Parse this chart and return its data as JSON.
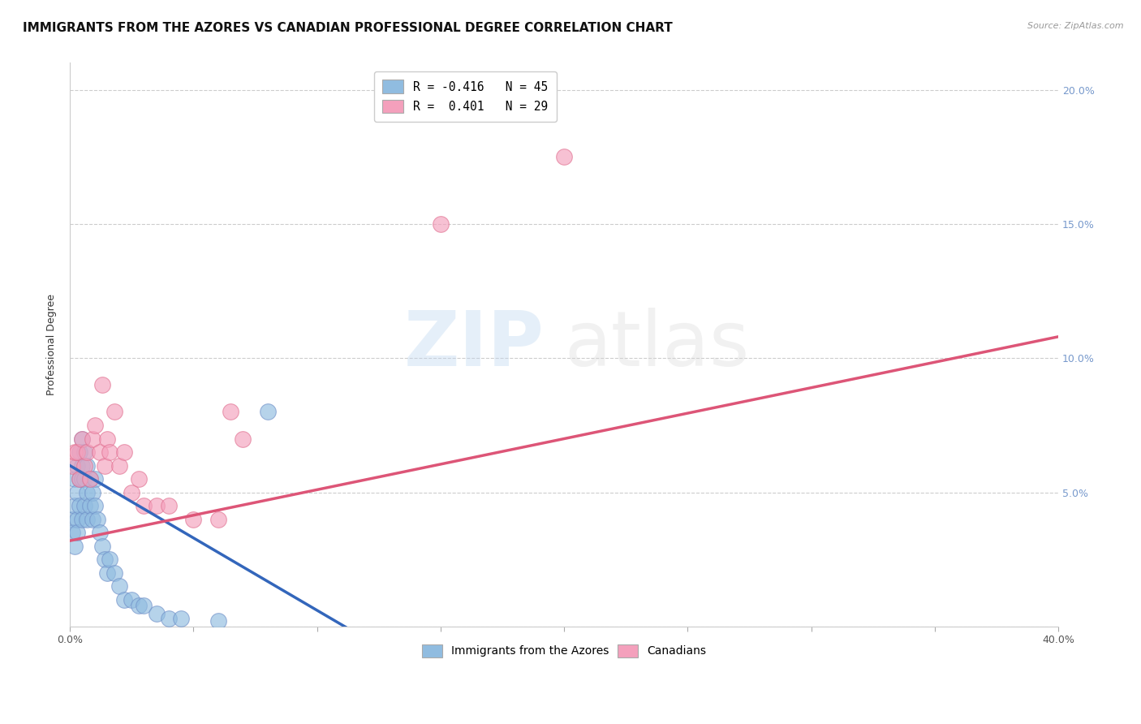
{
  "title": "IMMIGRANTS FROM THE AZORES VS CANADIAN PROFESSIONAL DEGREE CORRELATION CHART",
  "source": "Source: ZipAtlas.com",
  "ylabel": "Professional Degree",
  "watermark_zip": "ZIP",
  "watermark_atlas": "atlas",
  "legend_entries": [
    {
      "label": "R = -0.416   N = 45",
      "color": "#a8c8e8"
    },
    {
      "label": "R =  0.401   N = 29",
      "color": "#f4a8c0"
    }
  ],
  "legend_bottom": [
    {
      "label": "Immigrants from the Azores",
      "color": "#a8c8e8"
    },
    {
      "label": "Canadians",
      "color": "#f4a8c0"
    }
  ],
  "y_ticks": [
    0.0,
    0.05,
    0.1,
    0.15,
    0.2
  ],
  "y_tick_labels": [
    "",
    "5.0%",
    "10.0%",
    "15.0%",
    "20.0%"
  ],
  "x_ticks": [
    0.0,
    0.05,
    0.1,
    0.15,
    0.2,
    0.25,
    0.3,
    0.35,
    0.4
  ],
  "blue_scatter_x": [
    0.001,
    0.001,
    0.002,
    0.002,
    0.002,
    0.003,
    0.003,
    0.003,
    0.003,
    0.004,
    0.004,
    0.004,
    0.005,
    0.005,
    0.005,
    0.005,
    0.006,
    0.006,
    0.006,
    0.007,
    0.007,
    0.007,
    0.008,
    0.008,
    0.009,
    0.009,
    0.01,
    0.01,
    0.011,
    0.012,
    0.013,
    0.014,
    0.015,
    0.016,
    0.018,
    0.02,
    0.022,
    0.025,
    0.028,
    0.03,
    0.035,
    0.04,
    0.045,
    0.06,
    0.08
  ],
  "blue_scatter_y": [
    0.04,
    0.035,
    0.055,
    0.045,
    0.03,
    0.06,
    0.05,
    0.04,
    0.035,
    0.065,
    0.055,
    0.045,
    0.07,
    0.06,
    0.055,
    0.04,
    0.065,
    0.055,
    0.045,
    0.06,
    0.05,
    0.04,
    0.055,
    0.045,
    0.05,
    0.04,
    0.055,
    0.045,
    0.04,
    0.035,
    0.03,
    0.025,
    0.02,
    0.025,
    0.02,
    0.015,
    0.01,
    0.01,
    0.008,
    0.008,
    0.005,
    0.003,
    0.003,
    0.002,
    0.08
  ],
  "pink_scatter_x": [
    0.001,
    0.002,
    0.003,
    0.004,
    0.005,
    0.006,
    0.007,
    0.008,
    0.009,
    0.01,
    0.012,
    0.013,
    0.014,
    0.015,
    0.016,
    0.018,
    0.02,
    0.022,
    0.025,
    0.028,
    0.03,
    0.035,
    0.04,
    0.05,
    0.06,
    0.065,
    0.07,
    0.15,
    0.2
  ],
  "pink_scatter_y": [
    0.06,
    0.065,
    0.065,
    0.055,
    0.07,
    0.06,
    0.065,
    0.055,
    0.07,
    0.075,
    0.065,
    0.09,
    0.06,
    0.07,
    0.065,
    0.08,
    0.06,
    0.065,
    0.05,
    0.055,
    0.045,
    0.045,
    0.045,
    0.04,
    0.04,
    0.08,
    0.07,
    0.15,
    0.175
  ],
  "blue_line_x": [
    0.0,
    0.115
  ],
  "blue_line_y": [
    0.06,
    -0.002
  ],
  "pink_line_x": [
    0.0,
    0.4
  ],
  "pink_line_y": [
    0.032,
    0.108
  ],
  "blue_color": "#90bce0",
  "pink_color": "#f4a0bc",
  "blue_edge_color": "#7090c8",
  "pink_edge_color": "#e07090",
  "blue_line_color": "#3366bb",
  "pink_line_color": "#dd5577",
  "background_color": "#ffffff",
  "grid_color": "#cccccc",
  "title_fontsize": 11,
  "axis_fontsize": 9,
  "tick_fontsize": 9,
  "right_tick_color": "#7799cc"
}
